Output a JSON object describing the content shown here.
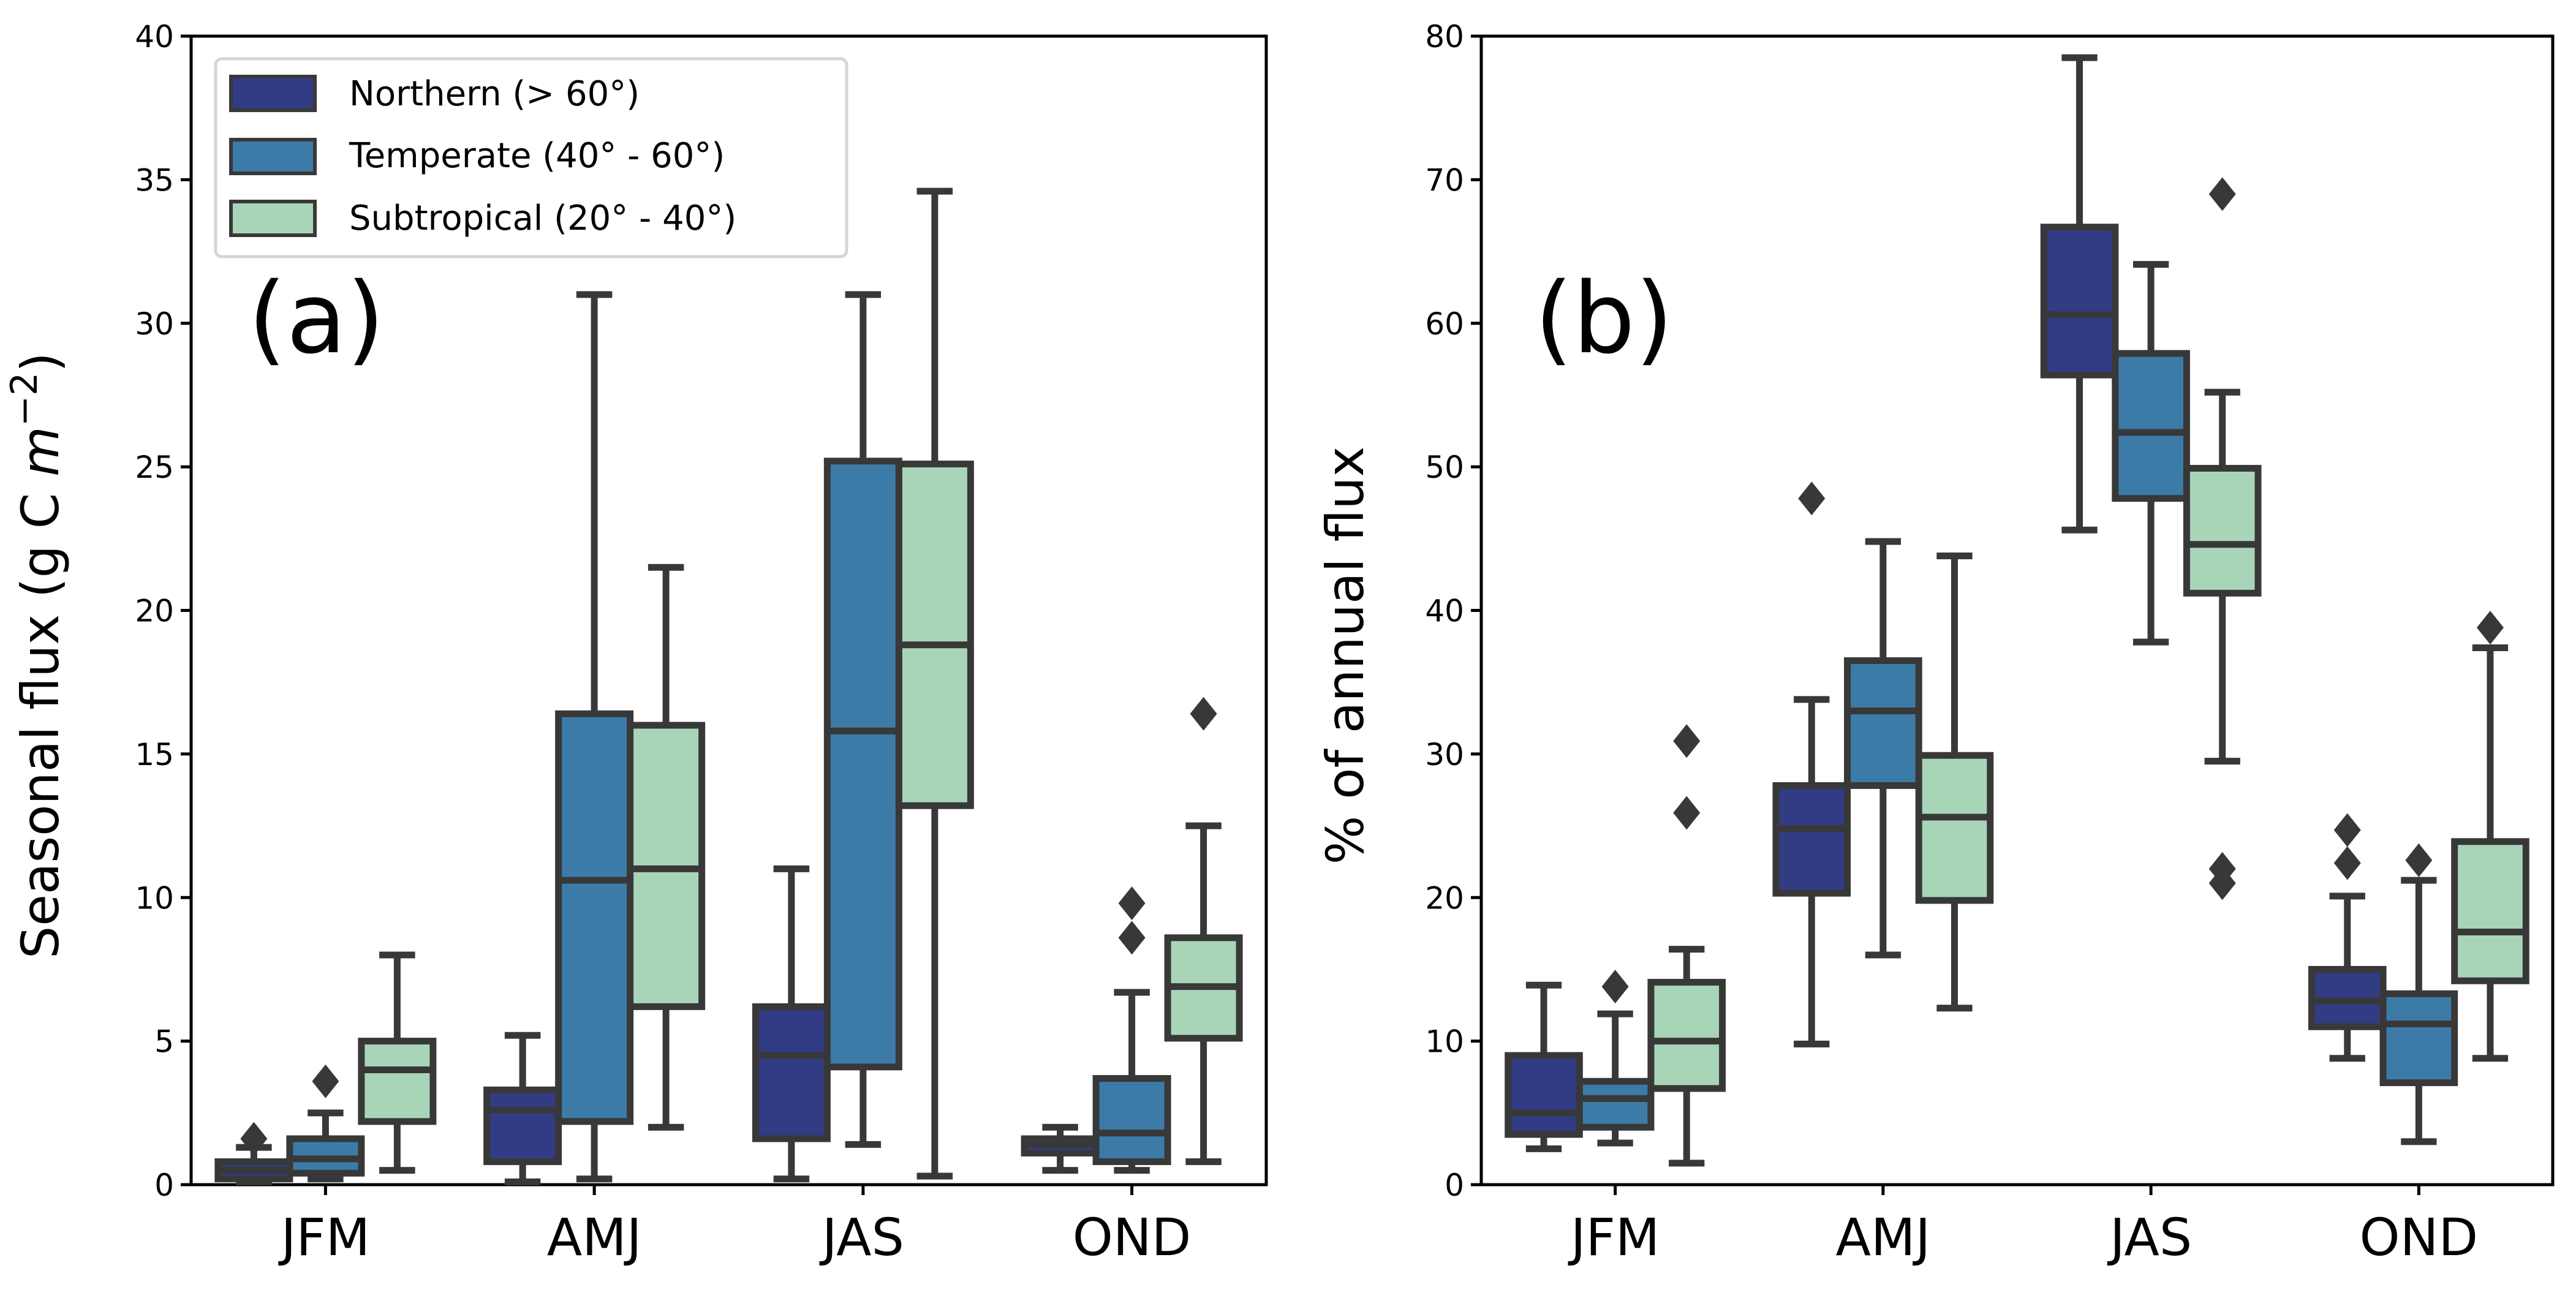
{
  "figure": {
    "legend": [
      {
        "label": "Northern (> 60°)",
        "color": "#323c85"
      },
      {
        "label": "Temperate (40° - 60°)",
        "color": "#3c7ba7"
      },
      {
        "label": "Subtropical (20° - 40°)",
        "color": "#a8d5b8"
      }
    ],
    "edge_color": "#383838"
  },
  "chart_data": [
    {
      "type": "box",
      "panel_label": "(a)",
      "title": "",
      "xlabel": "",
      "ylabel": "Seasonal flux (g C m⁻²)",
      "ylabel_parts": {
        "main": "Seasonal flux (g C ",
        "italic": "m",
        "sup": "−2",
        "close": ")"
      },
      "ylim": [
        0,
        40
      ],
      "yticks": [
        0,
        5,
        10,
        15,
        20,
        25,
        30,
        35,
        40
      ],
      "categories": [
        "JFM",
        "AMJ",
        "JAS",
        "OND"
      ],
      "legend_position": "top-left",
      "series": [
        {
          "name": "Northern (> 60°)",
          "boxes": [
            {
              "whislo": 0.1,
              "q1": 0.2,
              "med": 0.5,
              "q3": 0.8,
              "whishi": 1.3,
              "fliers": [
                1.6
              ]
            },
            {
              "whislo": 0.1,
              "q1": 0.8,
              "med": 2.6,
              "q3": 3.3,
              "whishi": 5.2,
              "fliers": []
            },
            {
              "whislo": 0.2,
              "q1": 1.6,
              "med": 4.5,
              "q3": 6.2,
              "whishi": 11.0,
              "fliers": []
            },
            {
              "whislo": 0.5,
              "q1": 1.1,
              "med": 1.4,
              "q3": 1.6,
              "whishi": 2.0,
              "fliers": []
            }
          ]
        },
        {
          "name": "Temperate (40° - 60°)",
          "boxes": [
            {
              "whislo": 0.2,
              "q1": 0.4,
              "med": 0.9,
              "q3": 1.6,
              "whishi": 2.5,
              "fliers": [
                3.6
              ]
            },
            {
              "whislo": 0.2,
              "q1": 2.2,
              "med": 10.6,
              "q3": 16.4,
              "whishi": 31.0,
              "fliers": []
            },
            {
              "whislo": 1.4,
              "q1": 4.1,
              "med": 15.8,
              "q3": 25.2,
              "whishi": 31.0,
              "fliers": []
            },
            {
              "whislo": 0.5,
              "q1": 0.8,
              "med": 1.8,
              "q3": 3.7,
              "whishi": 6.7,
              "fliers": [
                8.6,
                9.8
              ]
            }
          ]
        },
        {
          "name": "Subtropical (20° - 40°)",
          "boxes": [
            {
              "whislo": 0.5,
              "q1": 2.2,
              "med": 4.0,
              "q3": 5.0,
              "whishi": 8.0,
              "fliers": []
            },
            {
              "whislo": 2.0,
              "q1": 6.2,
              "med": 11.0,
              "q3": 16.0,
              "whishi": 21.5,
              "fliers": []
            },
            {
              "whislo": 0.3,
              "q1": 13.2,
              "med": 18.8,
              "q3": 25.1,
              "whishi": 34.6,
              "fliers": []
            },
            {
              "whislo": 0.8,
              "q1": 5.1,
              "med": 6.9,
              "q3": 8.6,
              "whishi": 12.5,
              "fliers": [
                16.4
              ]
            }
          ]
        }
      ]
    },
    {
      "type": "box",
      "panel_label": "(b)",
      "title": "",
      "xlabel": "",
      "ylabel": "% of annual flux",
      "ylim": [
        0,
        80
      ],
      "yticks": [
        0,
        10,
        20,
        30,
        40,
        50,
        60,
        70,
        80
      ],
      "categories": [
        "JFM",
        "AMJ",
        "JAS",
        "OND"
      ],
      "series": [
        {
          "name": "Northern (> 60°)",
          "boxes": [
            {
              "whislo": 2.5,
              "q1": 3.5,
              "med": 5.0,
              "q3": 9.0,
              "whishi": 13.9,
              "fliers": []
            },
            {
              "whislo": 9.8,
              "q1": 20.3,
              "med": 24.8,
              "q3": 27.8,
              "whishi": 33.8,
              "fliers": [
                47.8
              ]
            },
            {
              "whislo": 45.6,
              "q1": 56.4,
              "med": 60.6,
              "q3": 66.7,
              "whishi": 78.5,
              "fliers": []
            },
            {
              "whislo": 8.8,
              "q1": 11.0,
              "med": 12.8,
              "q3": 15.0,
              "whishi": 20.1,
              "fliers": [
                22.4,
                24.7
              ]
            }
          ]
        },
        {
          "name": "Temperate (40° - 60°)",
          "boxes": [
            {
              "whislo": 2.9,
              "q1": 4.0,
              "med": 6.0,
              "q3": 7.2,
              "whishi": 11.9,
              "fliers": [
                13.8
              ]
            },
            {
              "whislo": 16.0,
              "q1": 27.8,
              "med": 33.0,
              "q3": 36.5,
              "whishi": 44.8,
              "fliers": []
            },
            {
              "whislo": 37.8,
              "q1": 47.8,
              "med": 52.4,
              "q3": 57.9,
              "whishi": 64.1,
              "fliers": []
            },
            {
              "whislo": 3.0,
              "q1": 7.1,
              "med": 11.2,
              "q3": 13.3,
              "whishi": 21.2,
              "fliers": [
                22.6
              ]
            }
          ]
        },
        {
          "name": "Subtropical (20° - 40°)",
          "boxes": [
            {
              "whislo": 1.5,
              "q1": 6.7,
              "med": 10.0,
              "q3": 14.1,
              "whishi": 16.4,
              "fliers": [
                25.9,
                30.9
              ]
            },
            {
              "whislo": 12.3,
              "q1": 19.8,
              "med": 25.6,
              "q3": 29.9,
              "whishi": 43.8,
              "fliers": []
            },
            {
              "whislo": 29.5,
              "q1": 41.2,
              "med": 44.6,
              "q3": 49.9,
              "whishi": 55.2,
              "fliers": [
                21.0,
                22.0,
                69.0
              ]
            },
            {
              "whislo": 8.8,
              "q1": 14.2,
              "med": 17.6,
              "q3": 23.9,
              "whishi": 37.4,
              "fliers": [
                38.8
              ]
            }
          ]
        }
      ]
    }
  ]
}
